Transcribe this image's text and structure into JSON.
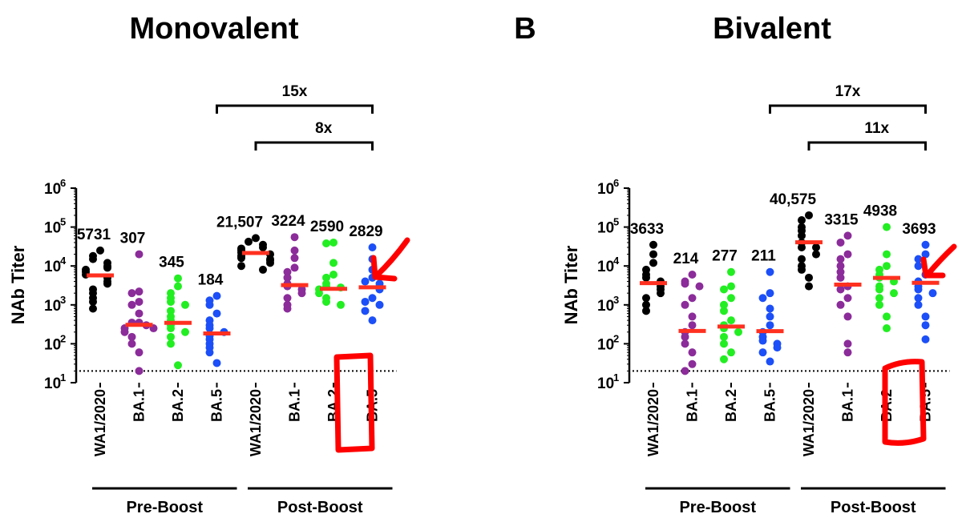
{
  "panel_letter": "B",
  "annotation_color": "#ff0000",
  "series_colors": {
    "WA1/2020": "#000000",
    "BA.1": "#8b2c9a",
    "BA.2": "#22ee22",
    "BA.5": "#1c4ff7"
  },
  "median_color": "#ff3020",
  "chart_data": [
    {
      "type": "scatter",
      "title": "Monovalent",
      "ylabel": "NAb Titer",
      "yscale": "log",
      "ylim": [
        10,
        1000000
      ],
      "y_ticks": [
        1,
        2,
        3,
        4,
        5,
        6
      ],
      "limit_of_detection": 20,
      "categories": [
        "WA1/2020",
        "BA.1",
        "BA.2",
        "BA.5",
        "WA1/2020",
        "BA.1",
        "BA.2",
        "BA.5"
      ],
      "series_keys": [
        "WA1/2020",
        "BA.1",
        "BA.2",
        "BA.5",
        "WA1/2020",
        "BA.1",
        "BA.2",
        "BA.5"
      ],
      "groups": [
        {
          "label": "Pre-Boost",
          "from": 0,
          "to": 3
        },
        {
          "label": "Post-Boost",
          "from": 4,
          "to": 7
        }
      ],
      "medians": [
        5731,
        307,
        345,
        184,
        21507,
        3224,
        2590,
        2829
      ],
      "median_labels": [
        "5731",
        "307",
        "345",
        "184",
        "21,507",
        "3224",
        "2590",
        "2829"
      ],
      "points": [
        [
          25000,
          18000,
          12000,
          15000,
          9000,
          10000,
          7000,
          8000,
          6000,
          4000,
          5000,
          3500,
          2000,
          2500,
          1500,
          1200,
          800
        ],
        [
          20000,
          2200,
          2000,
          1200,
          1000,
          600,
          350,
          300,
          250,
          200,
          350,
          250,
          150,
          100,
          60,
          20
        ],
        [
          4800,
          3000,
          2000,
          1500,
          1200,
          1000,
          700,
          500,
          400,
          300,
          250,
          200,
          150,
          100,
          28
        ],
        [
          1700,
          1300,
          1000,
          600,
          400,
          300,
          250,
          200,
          160,
          130,
          100,
          80,
          60,
          32
        ],
        [
          52000,
          42000,
          35000,
          28000,
          25000,
          22000,
          18000,
          16000,
          14000,
          12000,
          10000,
          8000,
          30000,
          20000,
          15000
        ],
        [
          55000,
          25000,
          16000,
          9000,
          7000,
          5000,
          3500,
          3000,
          2500,
          2000,
          1500,
          1000,
          800
        ],
        [
          40000,
          38000,
          12000,
          6000,
          5000,
          3500,
          3000,
          2800,
          2500,
          2000,
          1500,
          1200,
          1000
        ],
        [
          30000,
          15000,
          8000,
          5000,
          4000,
          3500,
          3000,
          2500,
          1500,
          1200,
          1000,
          700,
          400
        ]
      ],
      "brackets": [
        {
          "label": "15x",
          "from": 3,
          "to": 7
        },
        {
          "label": "8x",
          "from": 4,
          "to": 7
        }
      ]
    },
    {
      "type": "scatter",
      "title": "Bivalent",
      "ylabel": "NAb Titer",
      "yscale": "log",
      "ylim": [
        10,
        1000000
      ],
      "y_ticks": [
        1,
        2,
        3,
        4,
        5,
        6
      ],
      "limit_of_detection": 20,
      "categories": [
        "WA1/2020",
        "BA.1",
        "BA.2",
        "BA.5",
        "WA1/2020",
        "BA.1",
        "BA.2",
        "BA.5"
      ],
      "series_keys": [
        "WA1/2020",
        "BA.1",
        "BA.2",
        "BA.5",
        "WA1/2020",
        "BA.1",
        "BA.2",
        "BA.5"
      ],
      "groups": [
        {
          "label": "Pre-Boost",
          "from": 0,
          "to": 3
        },
        {
          "label": "Post-Boost",
          "from": 4,
          "to": 7
        }
      ],
      "medians": [
        3633,
        214,
        277,
        211,
        40575,
        3315,
        4938,
        3693
      ],
      "median_labels": [
        "3633",
        "214",
        "277",
        "211",
        "40,575",
        "3315",
        "4938",
        "3693"
      ],
      "points": [
        [
          35000,
          20000,
          12000,
          8000,
          6000,
          5000,
          4000,
          3500,
          3000,
          2500,
          2000,
          1500,
          1000,
          700
        ],
        [
          6000,
          4000,
          3500,
          3000,
          1500,
          1000,
          500,
          300,
          200,
          150,
          100,
          60,
          30,
          20
        ],
        [
          7000,
          3000,
          2500,
          1500,
          1000,
          700,
          400,
          300,
          250,
          200,
          150,
          100,
          60,
          40
        ],
        [
          7000,
          2000,
          1500,
          800,
          500,
          300,
          200,
          150,
          120,
          100,
          80,
          60,
          35
        ],
        [
          200000,
          150000,
          100000,
          80000,
          60000,
          40000,
          30000,
          20000,
          15000,
          10000,
          8000,
          5000,
          3000,
          30000
        ],
        [
          60000,
          40000,
          20000,
          15000,
          10000,
          7000,
          5000,
          3000,
          2500,
          1500,
          1000,
          500,
          100,
          60
        ],
        [
          100000,
          20000,
          10000,
          8000,
          6000,
          5000,
          4000,
          3000,
          2500,
          2000,
          1500,
          1000,
          500,
          250
        ],
        [
          35000,
          20000,
          15000,
          10000,
          6000,
          4000,
          3000,
          2500,
          2000,
          1500,
          1000,
          500,
          300,
          130
        ]
      ],
      "brackets": [
        {
          "label": "17x",
          "from": 3,
          "to": 7
        },
        {
          "label": "11x",
          "from": 4,
          "to": 7
        }
      ]
    }
  ]
}
